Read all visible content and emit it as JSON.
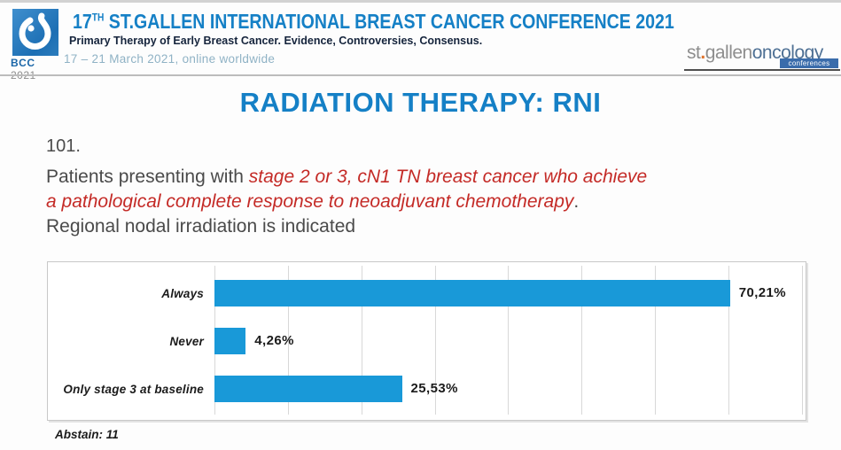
{
  "header": {
    "logo": {
      "bcc": "BCC",
      "year": "2021"
    },
    "title_num": "17",
    "title_sup": "TH",
    "title_main": " ST.GALLEN INTERNATIONAL BREAST CANCER CONFERENCE 2021",
    "subtitle": "Primary Therapy of Early Breast Cancer. Evidence, Controversies, Consensus.",
    "dates": "17 – 21 March 2021, online worldwide",
    "right_logo": {
      "st": "st",
      "dot": ".",
      "gallen": "gallen",
      "oncology": "oncology",
      "badge": "conferences"
    }
  },
  "slide": {
    "title": "RADIATION THERAPY: RNI",
    "question_number": "101.",
    "question_plain_1": "Patients presenting with ",
    "question_red_1": "stage 2 or 3, cN1 TN breast cancer who achieve",
    "question_red_2": "a pathological complete response to neoadjuvant chemotherapy",
    "question_period": ".",
    "question_plain_2": "Regional nodal irradiation is indicated",
    "abstain_note": "Abstain: 11"
  },
  "chart_data": {
    "type": "bar",
    "orientation": "horizontal",
    "title": "",
    "categories": [
      "Always",
      "Never",
      "Only stage 3 at baseline"
    ],
    "values": [
      70.21,
      4.26,
      25.53
    ],
    "value_labels": [
      "70,21%",
      "4,26%",
      "25,53%"
    ],
    "xlabel": "",
    "ylabel": "",
    "xlim": [
      0,
      80.5
    ],
    "gridline_step": 10,
    "grid": true,
    "legend": false,
    "bar_color": "#1999d8"
  },
  "colors": {
    "accent_blue": "#1580c6",
    "bar_blue": "#1999d8",
    "question_red": "#c42a26",
    "text_dark": "#4a4a4a"
  }
}
